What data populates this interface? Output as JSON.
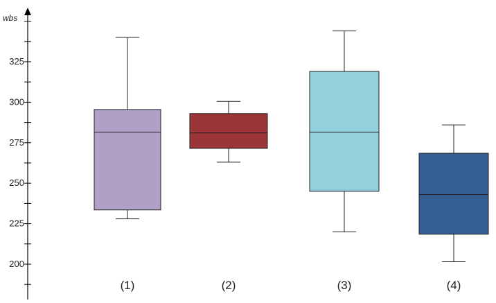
{
  "chart_data": {
    "type": "boxplot",
    "ylabel": "wbs",
    "xlabel": "",
    "title": "",
    "ylim": [
      185,
      380
    ],
    "yticks": [
      200,
      225,
      250,
      275,
      300,
      325
    ],
    "grid": false,
    "categories": [
      "(1)",
      "(2)",
      "(3)",
      "(4)"
    ],
    "boxes": [
      {
        "label": "(1)",
        "min": 228,
        "q1": 233.5,
        "median": 281.5,
        "q3": 295.5,
        "max": 340,
        "color": "#B0A0C8"
      },
      {
        "label": "(2)",
        "min": 263,
        "q1": 271.5,
        "median": 281,
        "q3": 293,
        "max": 300.5,
        "color": "#9B3538"
      },
      {
        "label": "(3)",
        "min": 220,
        "q1": 245,
        "median": 281.5,
        "q3": 319,
        "max": 344,
        "color": "#92D0DE"
      },
      {
        "label": "(4)",
        "min": 201.5,
        "q1": 218.5,
        "median": 243,
        "q3": 268.5,
        "max": 286,
        "color": "#355F92"
      }
    ]
  }
}
